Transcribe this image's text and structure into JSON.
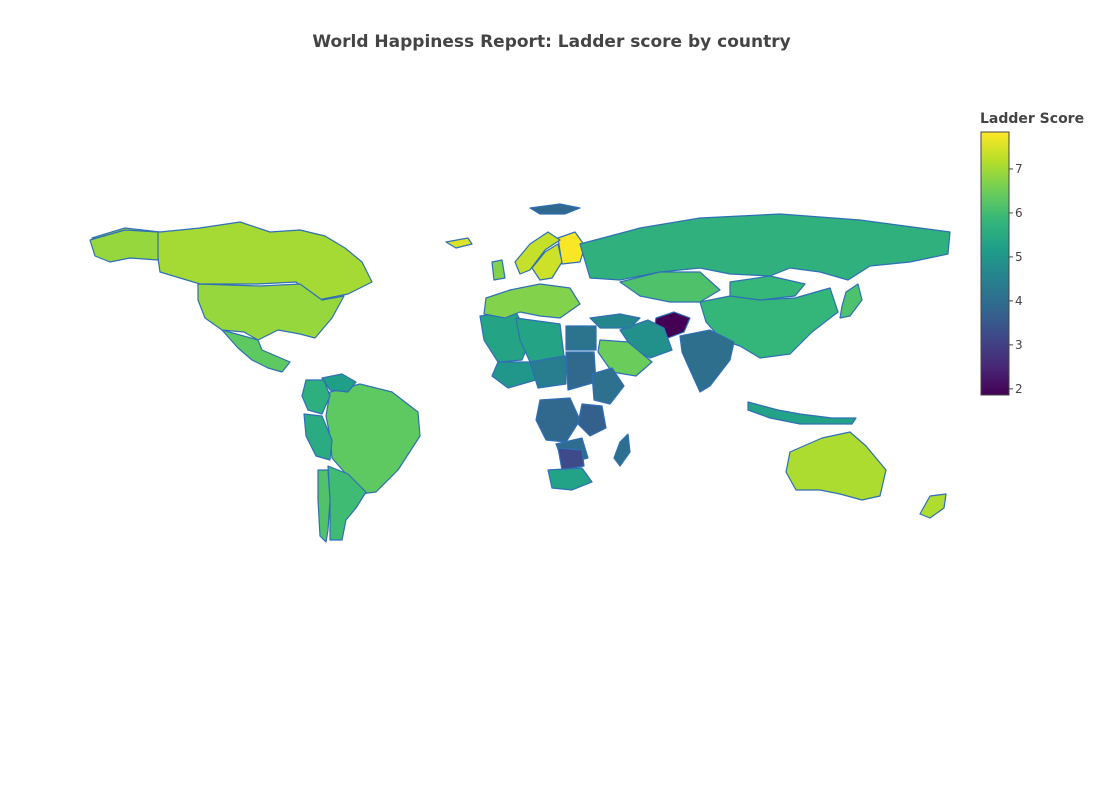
{
  "title": "World Happiness Report: Ladder score by country",
  "colorbar": {
    "title": "Ladder Score",
    "ticks": [
      "7",
      "6",
      "5",
      "4",
      "3",
      "2"
    ],
    "tick_values": [
      7,
      6,
      5,
      4,
      3,
      2
    ],
    "range": [
      1.86,
      7.84
    ],
    "colors": [
      "#440154",
      "#482878",
      "#3e4989",
      "#31688e",
      "#26828e",
      "#1f9e89",
      "#35b779",
      "#6ece58",
      "#b5de2b",
      "#fde725"
    ]
  },
  "map": {
    "projection": "equirectangular",
    "border_color": "#2f6fb5",
    "countries": [
      {
        "name": "Canada",
        "score": 7.03
      },
      {
        "name": "United States",
        "score": 6.89
      },
      {
        "name": "Mexico",
        "score": 6.33
      },
      {
        "name": "Brazil",
        "score": 6.33
      },
      {
        "name": "Argentina",
        "score": 5.97
      },
      {
        "name": "Colombia",
        "score": 5.63
      },
      {
        "name": "Peru",
        "score": 5.53
      },
      {
        "name": "Venezuela",
        "score": 5.21
      },
      {
        "name": "Chile",
        "score": 6.17
      },
      {
        "name": "Greenland",
        "score": null
      },
      {
        "name": "Iceland",
        "score": 7.53
      },
      {
        "name": "Finland",
        "score": 7.8
      },
      {
        "name": "Norway",
        "score": 7.32
      },
      {
        "name": "Sweden",
        "score": 7.4
      },
      {
        "name": "Russia",
        "score": 5.66
      },
      {
        "name": "China",
        "score": 5.82
      },
      {
        "name": "Kazakhstan",
        "score": 6.14
      },
      {
        "name": "Mongolia",
        "score": 5.84
      },
      {
        "name": "India",
        "score": 4.04
      },
      {
        "name": "Afghanistan",
        "score": 1.86
      },
      {
        "name": "Iran",
        "score": 4.88
      },
      {
        "name": "Saudi Arabia",
        "score": 6.46
      },
      {
        "name": "Egypt",
        "score": 4.17
      },
      {
        "name": "Algeria",
        "score": 5.33
      },
      {
        "name": "Libya",
        "score": 5.33
      },
      {
        "name": "Niger",
        "score": 5.0
      },
      {
        "name": "Chad",
        "score": 4.4
      },
      {
        "name": "Sudan",
        "score": null
      },
      {
        "name": "Ethiopia",
        "score": 4.09
      },
      {
        "name": "DR Congo",
        "score": null
      },
      {
        "name": "Tanzania",
        "score": 3.69
      },
      {
        "name": "Zambia",
        "score": 3.98
      },
      {
        "name": "Zimbabwe",
        "score": 3.2
      },
      {
        "name": "South Africa",
        "score": 5.28
      },
      {
        "name": "Madagascar",
        "score": 4.02
      },
      {
        "name": "Australia",
        "score": 7.1
      },
      {
        "name": "New Zealand",
        "score": 7.12
      },
      {
        "name": "Indonesia",
        "score": 5.28
      },
      {
        "name": "Japan",
        "score": 6.13
      },
      {
        "name": "Turkey",
        "score": 4.61
      },
      {
        "name": "Western Europe",
        "score": 6.7
      }
    ]
  }
}
